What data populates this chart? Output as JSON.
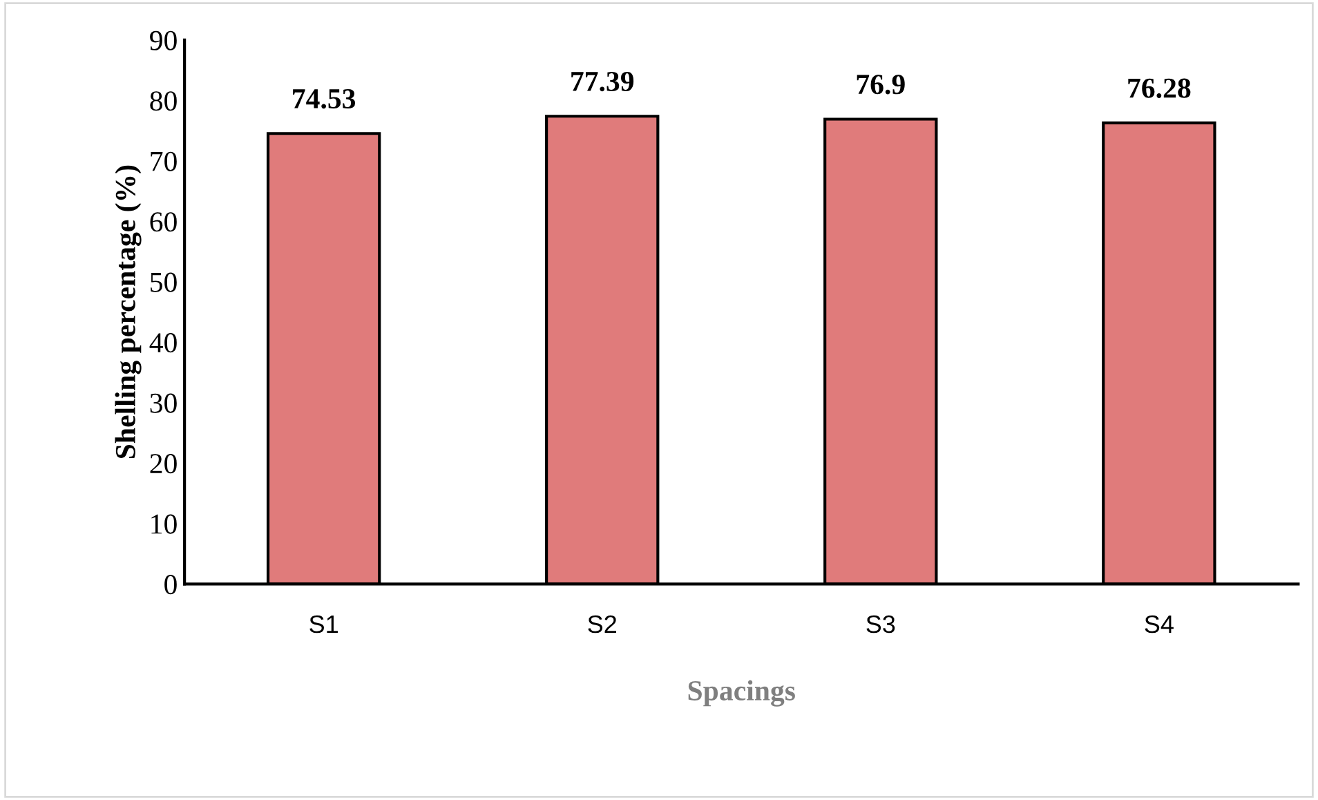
{
  "chart_data": {
    "type": "bar",
    "xlabel": "Spacings",
    "ylabel": "Shelling percentage (%)",
    "categories": [
      "S1",
      "S2",
      "S3",
      "S4"
    ],
    "values": [
      74.53,
      77.39,
      76.9,
      76.28
    ],
    "value_labels": [
      "74.53",
      "77.39",
      "76.9",
      "76.28"
    ],
    "color": "#e07b7b",
    "ylim": [
      0,
      90
    ],
    "yticks": [
      0,
      10,
      20,
      30,
      40,
      50,
      60,
      70,
      80,
      90
    ],
    "grid": false,
    "legend": false
  }
}
